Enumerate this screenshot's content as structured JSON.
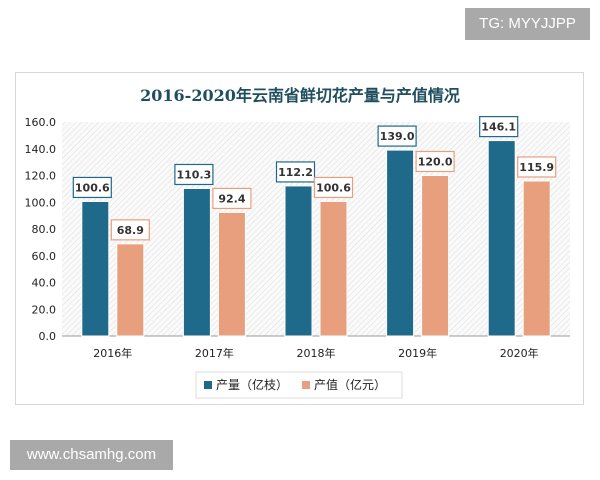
{
  "watermarks": {
    "top_right": "TG: MYYJJPP",
    "bottom_left": "www.chsamhg.com"
  },
  "chart_data": {
    "type": "bar",
    "title": "2016-2020年云南省鲜切花产量与产值情况",
    "categories": [
      "2016年",
      "2017年",
      "2018年",
      "2019年",
      "2020年"
    ],
    "series": [
      {
        "name": "产量（亿枝）",
        "values": [
          100.6,
          110.3,
          112.2,
          139.0,
          146.1
        ],
        "color": "#1f6a8a"
      },
      {
        "name": "产值（亿元）",
        "values": [
          68.9,
          92.4,
          100.6,
          120.0,
          115.9
        ],
        "color": "#e89f7d"
      }
    ],
    "yticks": [
      "0.0",
      "20.0",
      "40.0",
      "60.0",
      "80.0",
      "100.0",
      "120.0",
      "140.0",
      "160.0"
    ],
    "ylim": [
      0,
      160
    ],
    "xlabel": "",
    "ylabel": "",
    "legend_position": "bottom",
    "background": "hatched",
    "title_color": "#1f4e5f"
  }
}
